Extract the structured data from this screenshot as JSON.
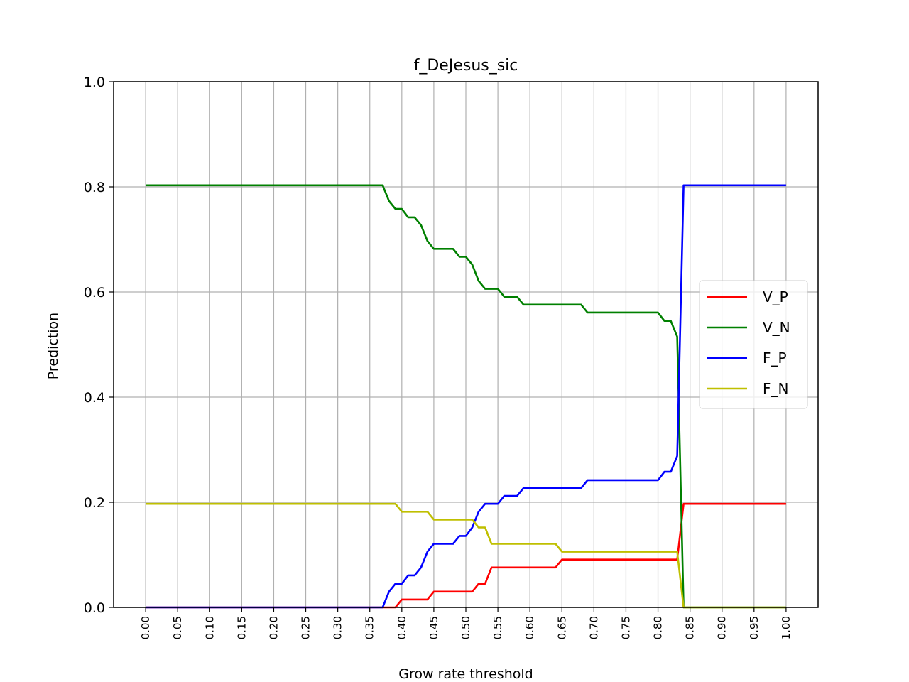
{
  "chart_data": {
    "type": "line",
    "title": "f_DeJesus_sic",
    "xlabel": "Grow rate threshold",
    "ylabel": "Prediction",
    "xlim": [
      -0.05,
      1.05
    ],
    "ylim": [
      0.0,
      1.0
    ],
    "grid": true,
    "legend_position": "center-right",
    "x_ticks": [
      "0.00",
      "0.05",
      "0.10",
      "0.15",
      "0.20",
      "0.25",
      "0.30",
      "0.35",
      "0.40",
      "0.45",
      "0.50",
      "0.55",
      "0.60",
      "0.65",
      "0.70",
      "0.75",
      "0.80",
      "0.85",
      "0.90",
      "0.95",
      "1.00"
    ],
    "y_ticks": [
      "0.0",
      "0.2",
      "0.4",
      "0.6",
      "0.8",
      "1.0"
    ],
    "series": [
      {
        "name": "V_P",
        "color": "#ff0000",
        "points": [
          [
            0.0,
            0.0
          ],
          [
            0.38,
            0.0
          ],
          [
            0.39,
            0.0
          ],
          [
            0.4,
            0.015
          ],
          [
            0.41,
            0.015
          ],
          [
            0.44,
            0.015
          ],
          [
            0.45,
            0.03
          ],
          [
            0.51,
            0.03
          ],
          [
            0.52,
            0.045
          ],
          [
            0.53,
            0.045
          ],
          [
            0.54,
            0.076
          ],
          [
            0.64,
            0.076
          ],
          [
            0.65,
            0.091
          ],
          [
            0.83,
            0.091
          ],
          [
            0.84,
            0.197
          ],
          [
            1.0,
            0.197
          ]
        ]
      },
      {
        "name": "V_N",
        "color": "#008000",
        "points": [
          [
            0.0,
            0.803
          ],
          [
            0.37,
            0.803
          ],
          [
            0.38,
            0.773
          ],
          [
            0.39,
            0.758
          ],
          [
            0.4,
            0.758
          ],
          [
            0.41,
            0.742
          ],
          [
            0.42,
            0.742
          ],
          [
            0.43,
            0.727
          ],
          [
            0.44,
            0.697
          ],
          [
            0.45,
            0.682
          ],
          [
            0.48,
            0.682
          ],
          [
            0.49,
            0.667
          ],
          [
            0.5,
            0.667
          ],
          [
            0.51,
            0.652
          ],
          [
            0.52,
            0.621
          ],
          [
            0.53,
            0.606
          ],
          [
            0.55,
            0.606
          ],
          [
            0.56,
            0.591
          ],
          [
            0.58,
            0.591
          ],
          [
            0.59,
            0.576
          ],
          [
            0.68,
            0.576
          ],
          [
            0.69,
            0.561
          ],
          [
            0.8,
            0.561
          ],
          [
            0.81,
            0.545
          ],
          [
            0.82,
            0.545
          ],
          [
            0.83,
            0.515
          ],
          [
            0.84,
            0.0
          ],
          [
            1.0,
            0.0
          ]
        ]
      },
      {
        "name": "F_P",
        "color": "#0000ff",
        "points": [
          [
            0.0,
            0.0
          ],
          [
            0.37,
            0.0
          ],
          [
            0.38,
            0.03
          ],
          [
            0.39,
            0.045
          ],
          [
            0.4,
            0.045
          ],
          [
            0.41,
            0.061
          ],
          [
            0.42,
            0.061
          ],
          [
            0.43,
            0.076
          ],
          [
            0.44,
            0.106
          ],
          [
            0.45,
            0.121
          ],
          [
            0.48,
            0.121
          ],
          [
            0.49,
            0.136
          ],
          [
            0.5,
            0.136
          ],
          [
            0.51,
            0.152
          ],
          [
            0.52,
            0.182
          ],
          [
            0.53,
            0.197
          ],
          [
            0.55,
            0.197
          ],
          [
            0.56,
            0.212
          ],
          [
            0.58,
            0.212
          ],
          [
            0.59,
            0.227
          ],
          [
            0.68,
            0.227
          ],
          [
            0.69,
            0.242
          ],
          [
            0.8,
            0.242
          ],
          [
            0.81,
            0.258
          ],
          [
            0.82,
            0.258
          ],
          [
            0.83,
            0.288
          ],
          [
            0.84,
            0.803
          ],
          [
            1.0,
            0.803
          ]
        ]
      },
      {
        "name": "F_N",
        "color": "#bfbf00",
        "points": [
          [
            0.0,
            0.197
          ],
          [
            0.39,
            0.197
          ],
          [
            0.4,
            0.182
          ],
          [
            0.44,
            0.182
          ],
          [
            0.45,
            0.167
          ],
          [
            0.51,
            0.167
          ],
          [
            0.52,
            0.152
          ],
          [
            0.53,
            0.152
          ],
          [
            0.54,
            0.121
          ],
          [
            0.64,
            0.121
          ],
          [
            0.65,
            0.106
          ],
          [
            0.83,
            0.106
          ],
          [
            0.84,
            0.0
          ],
          [
            1.0,
            0.0
          ]
        ]
      }
    ]
  }
}
